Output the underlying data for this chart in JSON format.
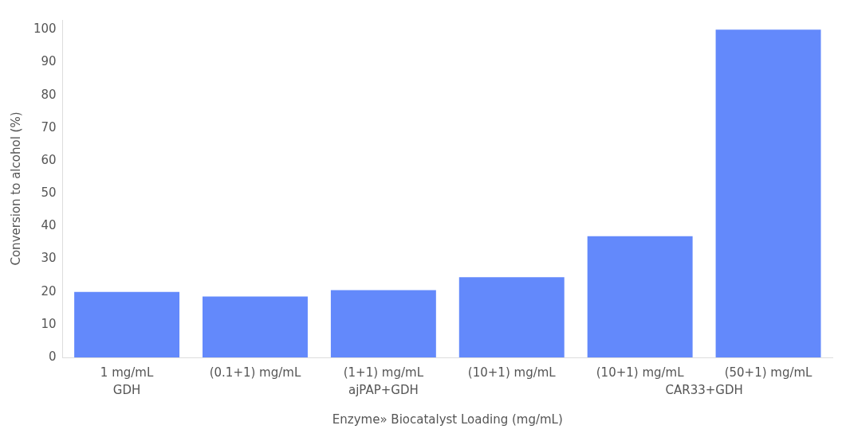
{
  "chart_data": {
    "type": "bar",
    "categories": [
      "1 mg/mL",
      "(0.1+1) mg/mL",
      "(1+1) mg/mL",
      "(10+1) mg/mL",
      "(10+1) mg/mL",
      "(50+1) mg/mL"
    ],
    "values": [
      20,
      18.6,
      20.5,
      24.5,
      37,
      100
    ],
    "color": "#6389fb",
    "xlabel": "Enzyme» Biocatalyst Loading (mg/mL)",
    "ylabel": "Conversion to alcohol (%)",
    "ylim": [
      0,
      103
    ],
    "yticks": [
      0,
      10,
      20,
      30,
      40,
      50,
      60,
      70,
      80,
      90,
      100
    ],
    "annotations": [
      "GDH",
      "ajPAP+GDH",
      "CAR33+GDH"
    ],
    "grid": false,
    "legend": false
  }
}
